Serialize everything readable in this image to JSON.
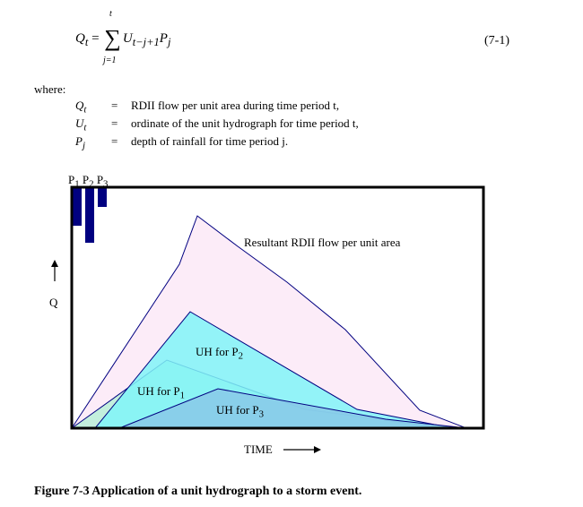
{
  "equation": {
    "lhs": "Q",
    "lhs_sub": "t",
    "sum_upper": "t",
    "sum_lower": "j=1",
    "term_U": "U",
    "term_U_sub": "t−j+1",
    "term_P": "P",
    "term_P_sub": "j",
    "number": "(7-1)"
  },
  "where_label": "where:",
  "definitions": [
    {
      "symbol": "Q",
      "sub": "t",
      "eq": "=",
      "text": "RDII flow per unit area during time period t,"
    },
    {
      "symbol": "U",
      "sub": "t",
      "eq": "=",
      "text": "ordinate of the unit hydrograph for time period t,"
    },
    {
      "symbol": "P",
      "sub": "j",
      "eq": "=",
      "text": "depth of rainfall for time period j."
    }
  ],
  "figure": {
    "rain_labels": [
      "P",
      "1",
      "P",
      "2",
      "P",
      "3"
    ],
    "rainfall_relative_depths": [
      0.7,
      1.0,
      0.35
    ],
    "labels": {
      "resultant": "Resultant RDII flow per unit area",
      "uh_p1": "UH for P",
      "uh_p1_sub": "1",
      "uh_p2": "UH for P",
      "uh_p2_sub": "2",
      "uh_p3": "UH for P",
      "uh_p3_sub": "3",
      "y_axis": "Q",
      "x_axis": "TIME"
    },
    "colors": {
      "frame": "#000000",
      "rain_bars": "#000080",
      "resultant_fill": "#fcecf8",
      "uh_p1_fill": "#b8f0d8",
      "uh_p2_fill": "#80f4f8",
      "uh_p3_fill": "#88c8e8",
      "outline": "#000080"
    }
  },
  "caption": "Figure 7-3 Application of a unit hydrograph to a storm event."
}
